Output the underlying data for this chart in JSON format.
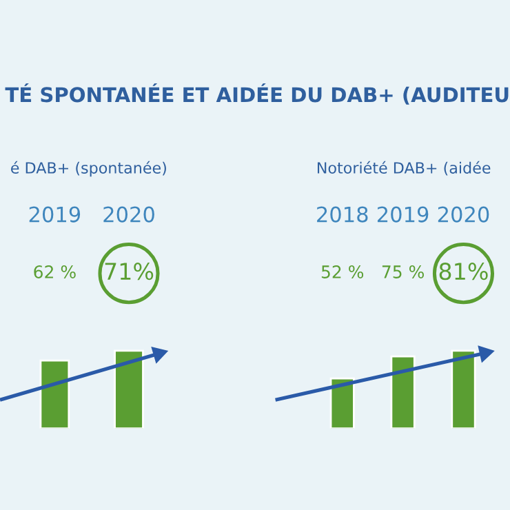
{
  "chart_data": [
    {
      "type": "bar",
      "title": "TÉ SPONTANÉE ET AIDÉE DU DAB+ (AUDITEU",
      "subtitle": "é DAB+ (spontanée)",
      "categories": [
        "2019",
        "2020"
      ],
      "values": [
        62,
        71
      ],
      "value_labels": [
        "62 %",
        "71%"
      ],
      "color": "#5a9e32"
    },
    {
      "type": "bar",
      "subtitle": "Notoriété DAB+ (aidée",
      "categories": [
        "2018",
        "2019",
        "2020"
      ],
      "values": [
        52,
        75,
        81
      ],
      "value_labels": [
        "52 %",
        "75 %",
        "81%"
      ],
      "color": "#5a9e32"
    }
  ]
}
